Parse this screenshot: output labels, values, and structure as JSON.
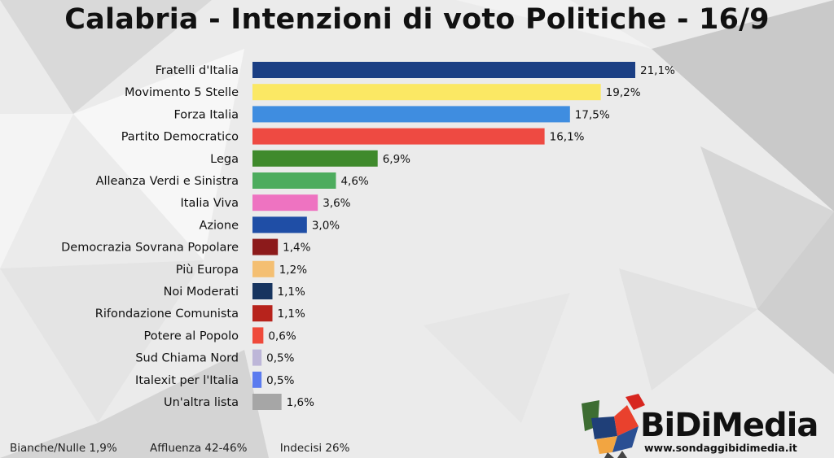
{
  "title": "Calabria - Intenzioni di voto Politiche - 16/9",
  "chart_data": {
    "type": "bar",
    "orientation": "horizontal",
    "categories": [
      "Fratelli d'Italia",
      "Movimento 5 Stelle",
      "Forza Italia",
      "Partito Democratico",
      "Lega",
      "Alleanza Verdi e Sinistra",
      "Italia Viva",
      "Azione",
      "Democrazia Sovrana Popolare",
      "Più Europa",
      "Noi Moderati",
      "Rifondazione Comunista",
      "Potere al Popolo",
      "Sud Chiama Nord",
      "Italexit per l'Italia",
      "Un'altra lista"
    ],
    "values": [
      21.1,
      19.2,
      17.5,
      16.1,
      6.9,
      4.6,
      3.6,
      3.0,
      1.4,
      1.2,
      1.1,
      1.1,
      0.6,
      0.5,
      0.5,
      1.6
    ],
    "value_labels": [
      "21,1%",
      "19,2%",
      "17,5%",
      "16,1%",
      "6,9%",
      "4,6%",
      "3,6%",
      "3,0%",
      "1,4%",
      "1,2%",
      "1,1%",
      "1,1%",
      "0,6%",
      "0,5%",
      "0,5%",
      "1,6%"
    ],
    "colors": [
      "#1b3f84",
      "#fbe864",
      "#3f8de0",
      "#ee4a42",
      "#3f8a2c",
      "#4dac5e",
      "#ee73c1",
      "#1f4ea6",
      "#8c1a1b",
      "#f4bf72",
      "#17345f",
      "#b7231c",
      "#ef4a3b",
      "#bdb6d8",
      "#5b7bef",
      "#a6a6a6"
    ],
    "xlim": [
      0,
      21.1
    ],
    "grid": false,
    "legend": "none"
  },
  "footer": {
    "bianche_nulle": "Bianche/Nulle 1,9%",
    "affluenza": "Affluenza 42-46%",
    "indecisi": "Indecisi 26%"
  },
  "logo": {
    "name": "BiDiMedia",
    "url": "www.sondaggibidimedia.it"
  }
}
